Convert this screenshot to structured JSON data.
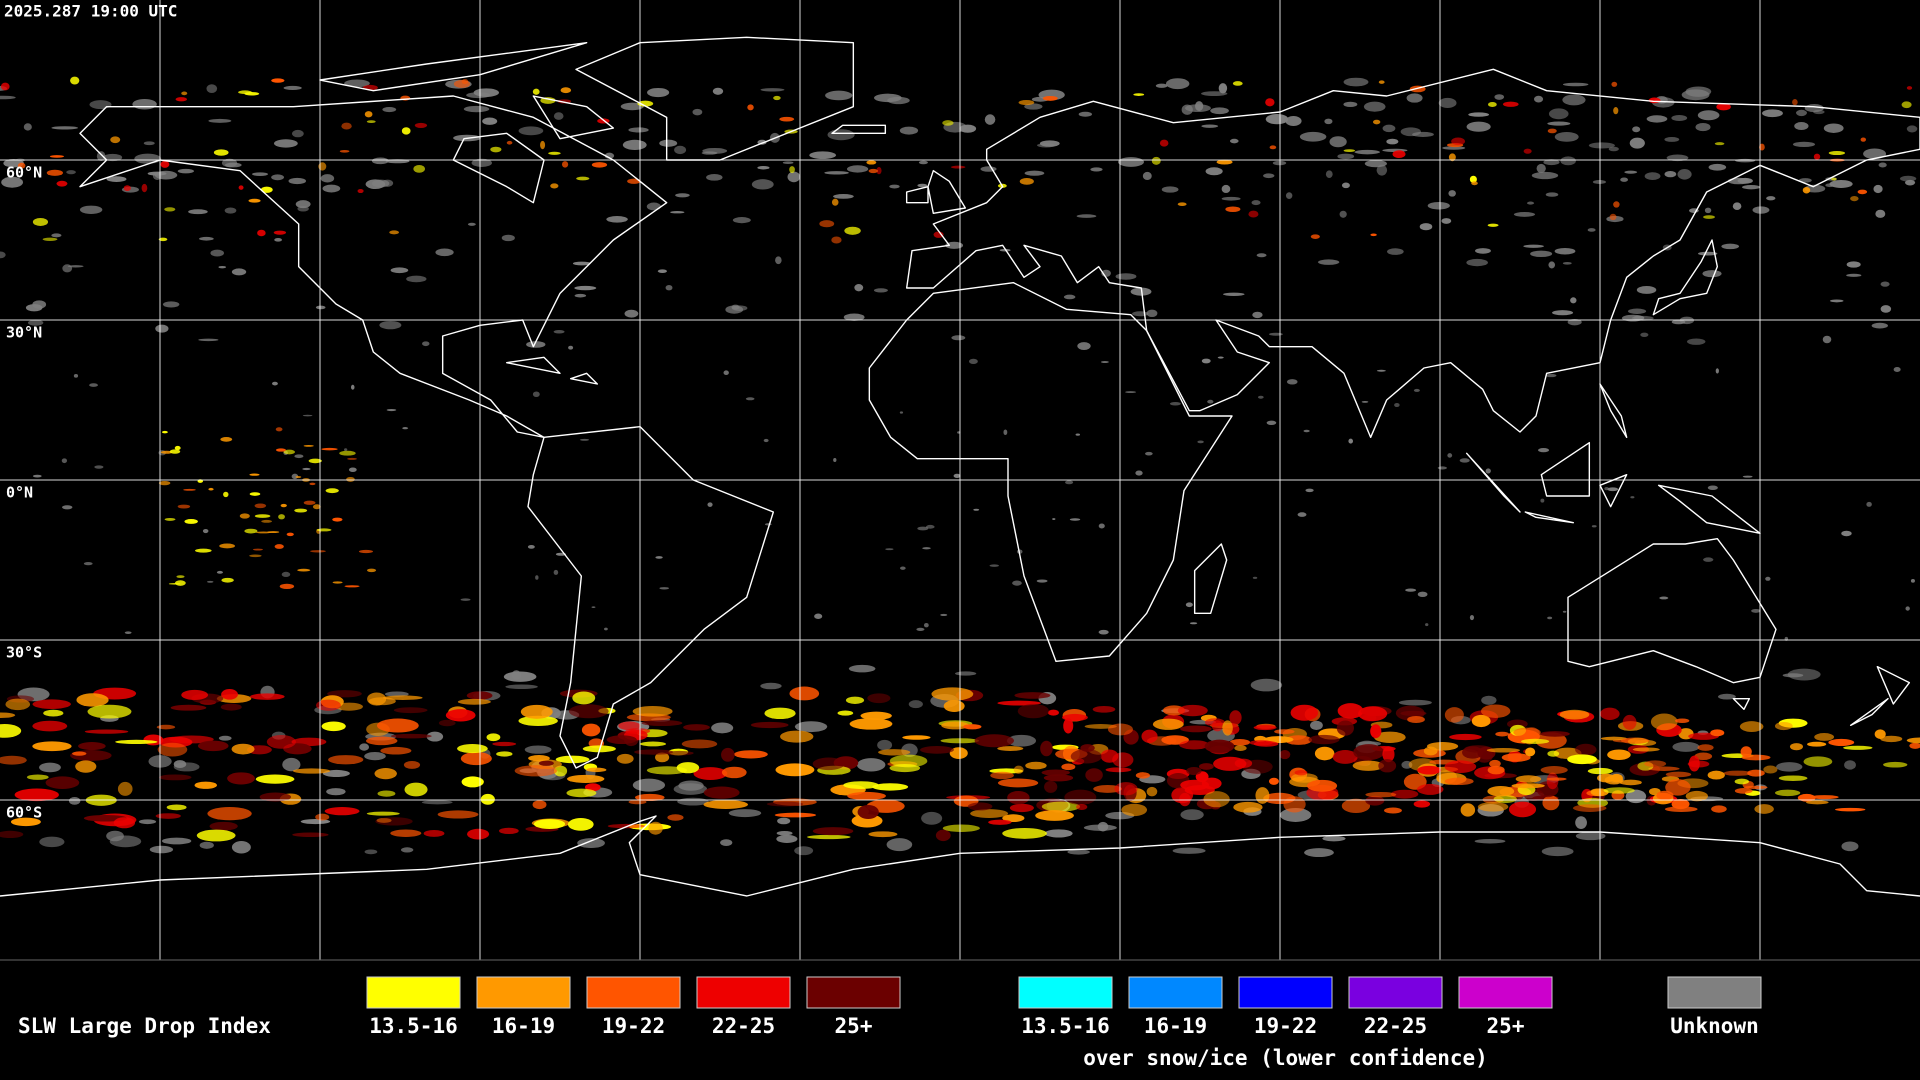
{
  "header": {
    "timestamp": "2025.287 19:00 UTC"
  },
  "map": {
    "latitude_labels": [
      "60°N",
      "30°N",
      "0°N",
      "30°S",
      "60°S"
    ]
  },
  "legend": {
    "title": "SLW Large Drop Index",
    "groups": [
      {
        "items": [
          {
            "label": "13.5-16",
            "color": "#ffff00"
          },
          {
            "label": "16-19",
            "color": "#ff9900"
          },
          {
            "label": "19-22",
            "color": "#ff5500"
          },
          {
            "label": "22-25",
            "color": "#ee0000"
          },
          {
            "label": "25+",
            "color": "#6b0000"
          }
        ]
      },
      {
        "items": [
          {
            "label": "13.5-16",
            "color": "#00ffff"
          },
          {
            "label": "16-19",
            "color": "#0088ff"
          },
          {
            "label": "19-22",
            "color": "#0000ff"
          },
          {
            "label": "22-25",
            "color": "#7a00e0"
          },
          {
            "label": "25+",
            "color": "#cc00cc"
          }
        ],
        "caption": "over snow/ice (lower confidence)"
      },
      {
        "items": [
          {
            "label": "Unknown",
            "color": "#808080"
          }
        ]
      }
    ]
  }
}
